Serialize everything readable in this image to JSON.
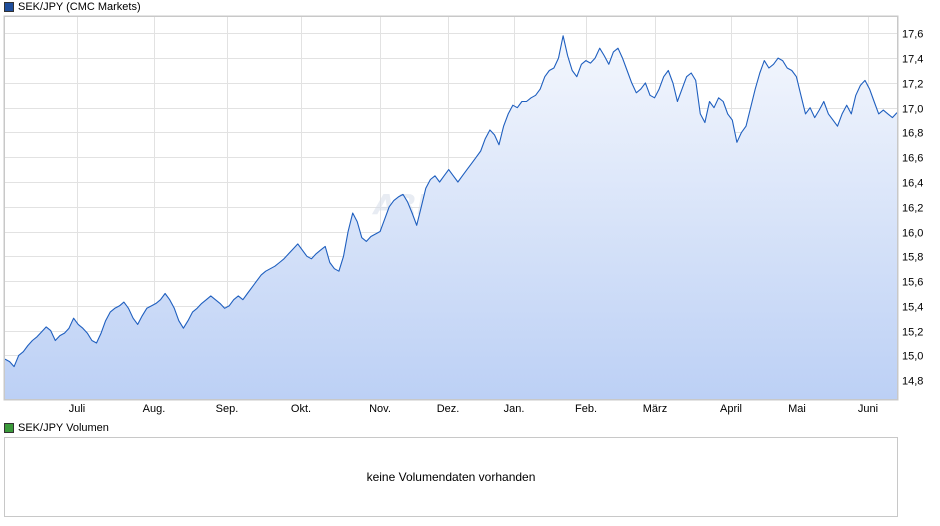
{
  "legend": {
    "price_label": "SEK/JPY (CMC Markets)",
    "price_color": "#1f4e9c",
    "volume_label": "SEK/JPY Volumen",
    "volume_color": "#3a9a3a"
  },
  "volume": {
    "message": "keine Volumendaten vorhanden"
  },
  "watermark": "ARIVA.DE",
  "chart_data": {
    "type": "area",
    "title": "SEK/JPY (CMC Markets)",
    "xlabel": "",
    "ylabel": "",
    "ylim": [
      14.64,
      17.74
    ],
    "grid": true,
    "y_ticks": [
      "14,8",
      "15,0",
      "15,2",
      "15,4",
      "15,6",
      "15,8",
      "16,0",
      "16,2",
      "16,4",
      "16,6",
      "16,8",
      "17,0",
      "17,2",
      "17,4",
      "17,6"
    ],
    "month_labels": [
      "Juli",
      "Aug.",
      "Sep.",
      "Okt.",
      "Nov.",
      "Dez.",
      "Jan.",
      "Feb.",
      "März",
      "April",
      "Mai",
      "Juni"
    ],
    "line_color": "#1f5fbf",
    "fill_color": "#bcd0f5",
    "series": [
      {
        "values": [
          14.97,
          14.95,
          14.91,
          15.0,
          15.03,
          15.08,
          15.12,
          15.15,
          15.19,
          15.23,
          15.2,
          15.12,
          15.16,
          15.18,
          15.22,
          15.3,
          15.25,
          15.22,
          15.18,
          15.12,
          15.1,
          15.18,
          15.28,
          15.35,
          15.38,
          15.4,
          15.43,
          15.38,
          15.3,
          15.25,
          15.32,
          15.38,
          15.4,
          15.42,
          15.45,
          15.5,
          15.45,
          15.38,
          15.28,
          15.22,
          15.28,
          15.35,
          15.38,
          15.42,
          15.45,
          15.48,
          15.45,
          15.42,
          15.38,
          15.4,
          15.45,
          15.48,
          15.45,
          15.5,
          15.55,
          15.6,
          15.65,
          15.68,
          15.7,
          15.72,
          15.75,
          15.78,
          15.82,
          15.86,
          15.9,
          15.85,
          15.8,
          15.78,
          15.82,
          15.85,
          15.88,
          15.75,
          15.7,
          15.68,
          15.8,
          16.0,
          16.15,
          16.08,
          15.95,
          15.92,
          15.96,
          15.98,
          16.0,
          16.1,
          16.2,
          16.25,
          16.28,
          16.3,
          16.24,
          16.15,
          16.05,
          16.2,
          16.35,
          16.42,
          16.45,
          16.4,
          16.45,
          16.5,
          16.45,
          16.4,
          16.45,
          16.5,
          16.55,
          16.6,
          16.65,
          16.75,
          16.82,
          16.78,
          16.7,
          16.85,
          16.95,
          17.02,
          17.0,
          17.05,
          17.05,
          17.08,
          17.1,
          17.15,
          17.25,
          17.3,
          17.32,
          17.4,
          17.58,
          17.42,
          17.3,
          17.25,
          17.35,
          17.38,
          17.36,
          17.4,
          17.48,
          17.42,
          17.35,
          17.45,
          17.48,
          17.4,
          17.3,
          17.2,
          17.12,
          17.15,
          17.2,
          17.1,
          17.08,
          17.15,
          17.25,
          17.3,
          17.2,
          17.05,
          17.15,
          17.25,
          17.28,
          17.22,
          16.95,
          16.88,
          17.05,
          17.0,
          17.08,
          17.05,
          16.95,
          16.9,
          16.72,
          16.8,
          16.85,
          17.0,
          17.15,
          17.28,
          17.38,
          17.32,
          17.35,
          17.4,
          17.38,
          17.32,
          17.3,
          17.25,
          17.1,
          16.95,
          17.0,
          16.92,
          16.98,
          17.05,
          16.95,
          16.9,
          16.85,
          16.95,
          17.02,
          16.95,
          17.1,
          17.18,
          17.22,
          17.15,
          17.05,
          16.95,
          16.98,
          16.95,
          16.92,
          16.96
        ]
      }
    ]
  }
}
